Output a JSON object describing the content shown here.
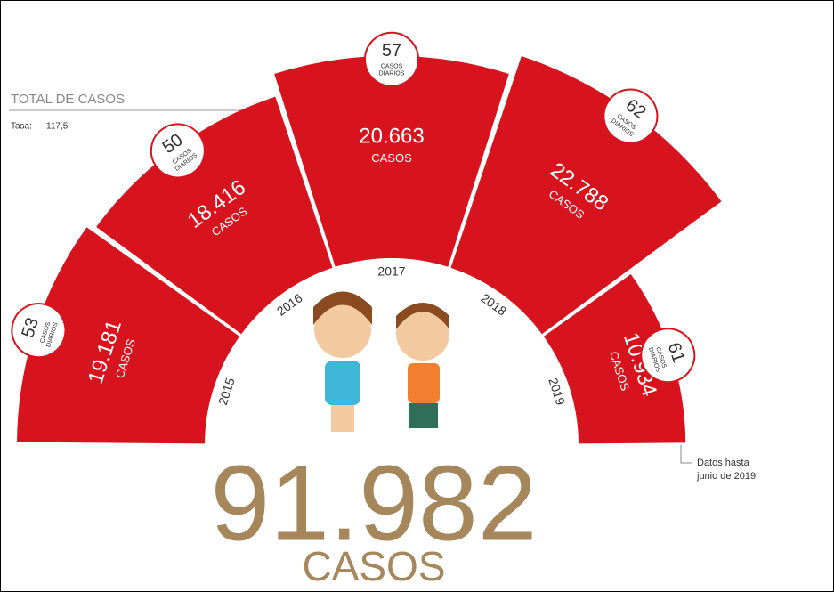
{
  "chart_data": {
    "type": "radial-bar",
    "heading": "TOTAL DE CASOS",
    "rate_label": "Tasa:",
    "rate": "117,5",
    "categories": [
      "2015",
      "2016",
      "2017",
      "2018",
      "2019"
    ],
    "values": [
      19181,
      18416,
      20663,
      22788,
      10934
    ],
    "value_labels": [
      "19.181",
      "18.416",
      "20.663",
      "22.788",
      "10.934"
    ],
    "unit_label": "CASOS",
    "daily": [
      53,
      50,
      57,
      62,
      61
    ],
    "daily_label_lines": [
      "CASOS",
      "DIARIOS"
    ],
    "color": "#d7141e",
    "total": {
      "value": 91982,
      "label": "91.982"
    },
    "total_unit": "CASOS",
    "note": [
      "Datos hasta",
      "junio de 2019."
    ]
  }
}
